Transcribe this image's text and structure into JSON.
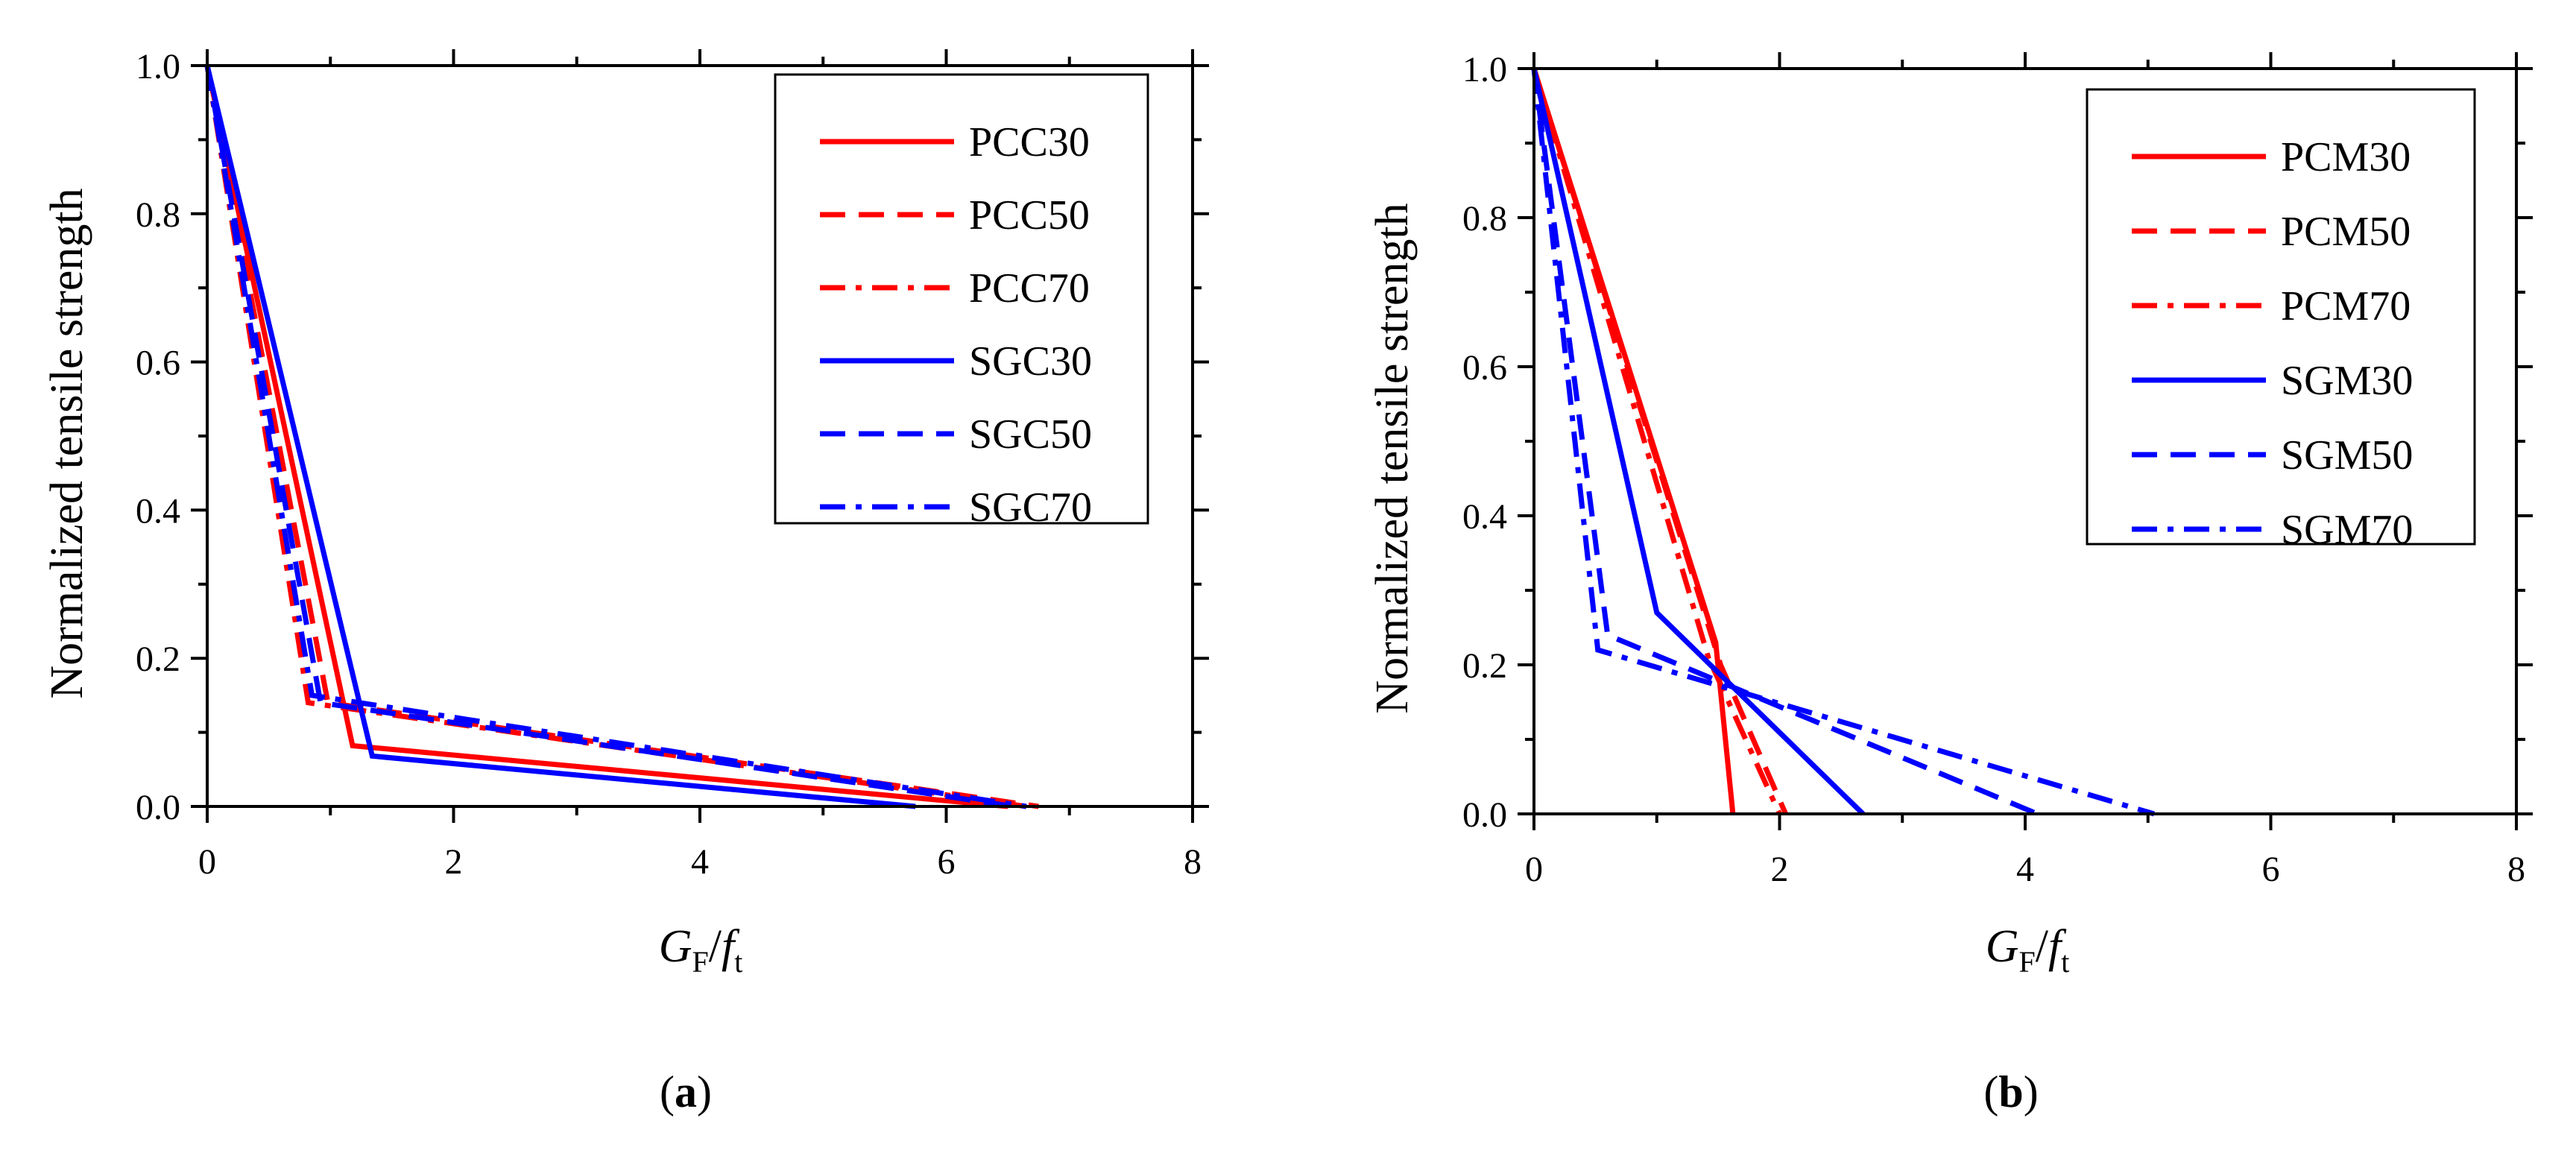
{
  "chart_data": [
    {
      "type": "line",
      "panel_label": "a",
      "xlabel": {
        "base1": "G",
        "sub1": "F",
        "slash": "/",
        "base2": "f",
        "sub2": "t"
      },
      "ylabel": "Normalized tensile strength",
      "xlim": [
        0,
        8
      ],
      "ylim": [
        0,
        1.0
      ],
      "xticks": [
        0,
        2,
        4,
        6,
        8
      ],
      "xtick_labels": [
        "0",
        "2",
        "4",
        "6",
        "8"
      ],
      "yticks": [
        0,
        0.2,
        0.4,
        0.6,
        0.8,
        1.0
      ],
      "ytick_labels": [
        "0.0",
        "0.2",
        "0.4",
        "0.6",
        "0.8",
        "1.0"
      ],
      "legend_position": "top-right",
      "series": [
        {
          "name": "PCC30",
          "color": "#ff0000",
          "dash": "solid",
          "x": [
            0,
            1.18,
            6.5
          ],
          "y": [
            1.0,
            0.082,
            0.0
          ]
        },
        {
          "name": "PCC50",
          "color": "#ff0000",
          "dash": "dash",
          "x": [
            0,
            0.98,
            6.75
          ],
          "y": [
            1.0,
            0.14,
            0.0
          ]
        },
        {
          "name": "PCC70",
          "color": "#ff0000",
          "dash": "dashdot",
          "x": [
            0,
            0.82,
            6.65
          ],
          "y": [
            1.0,
            0.14,
            0.0
          ]
        },
        {
          "name": "SGC30",
          "color": "#0000ff",
          "dash": "solid",
          "x": [
            0,
            1.34,
            5.75
          ],
          "y": [
            1.0,
            0.068,
            0.0
          ]
        },
        {
          "name": "SGC50",
          "color": "#0000ff",
          "dash": "dash",
          "x": [
            0,
            0.92,
            6.55
          ],
          "y": [
            1.0,
            0.14,
            0.0
          ]
        },
        {
          "name": "SGC70",
          "color": "#0000ff",
          "dash": "dashdot",
          "x": [
            0,
            0.85,
            6.65
          ],
          "y": [
            1.0,
            0.15,
            0.0
          ]
        }
      ]
    },
    {
      "type": "line",
      "panel_label": "b",
      "xlabel": {
        "base1": "G",
        "sub1": "F",
        "slash": "/",
        "base2": "f",
        "sub2": "t"
      },
      "ylabel": "Normalized tensile strength",
      "xlim": [
        0,
        8
      ],
      "ylim": [
        0,
        1.0
      ],
      "xticks": [
        0,
        2,
        4,
        6,
        8
      ],
      "xtick_labels": [
        "0",
        "2",
        "4",
        "6",
        "8"
      ],
      "yticks": [
        0,
        0.2,
        0.4,
        0.6,
        0.8,
        1.0
      ],
      "ytick_labels": [
        "0.0",
        "0.2",
        "0.4",
        "0.6",
        "0.8",
        "1.0"
      ],
      "legend_position": "top-right",
      "series": [
        {
          "name": "PCM30",
          "color": "#ff0000",
          "dash": "solid",
          "x": [
            0,
            1.48,
            1.62
          ],
          "y": [
            1.0,
            0.23,
            0.0
          ]
        },
        {
          "name": "PCM50",
          "color": "#ff0000",
          "dash": "dash",
          "x": [
            0,
            1.52,
            2.05
          ],
          "y": [
            1.0,
            0.2,
            0.0
          ]
        },
        {
          "name": "PCM70",
          "color": "#ff0000",
          "dash": "dashdot",
          "x": [
            0,
            1.42,
            2.0
          ],
          "y": [
            1.0,
            0.21,
            0.0
          ]
        },
        {
          "name": "SGM30",
          "color": "#0000ff",
          "dash": "solid",
          "x": [
            0,
            1.0,
            2.68
          ],
          "y": [
            1.0,
            0.27,
            0.0
          ]
        },
        {
          "name": "SGM50",
          "color": "#0000ff",
          "dash": "dash",
          "x": [
            0,
            0.6,
            4.1
          ],
          "y": [
            1.0,
            0.24,
            0.0
          ]
        },
        {
          "name": "SGM70",
          "color": "#0000ff",
          "dash": "dashdot",
          "x": [
            0,
            0.52,
            5.05
          ],
          "y": [
            1.0,
            0.22,
            0.0
          ]
        }
      ]
    }
  ]
}
